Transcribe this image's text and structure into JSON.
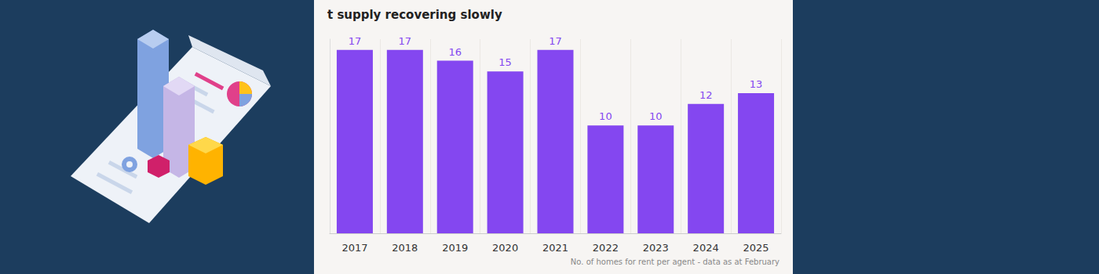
{
  "chart_data": {
    "type": "bar",
    "title": "t supply recovering slowly",
    "subtitle": "No. of homes for rent per agent - data as at February",
    "categories": [
      "2017",
      "2018",
      "2019",
      "2020",
      "2021",
      "2022",
      "2023",
      "2024",
      "2025"
    ],
    "values": [
      17,
      17,
      16,
      15,
      17,
      10,
      10,
      12,
      13
    ],
    "color": "#8447f0",
    "ylim": [
      0,
      18
    ],
    "yticks": [],
    "grid": true,
    "data_labels": true,
    "tick_labels": "x"
  }
}
